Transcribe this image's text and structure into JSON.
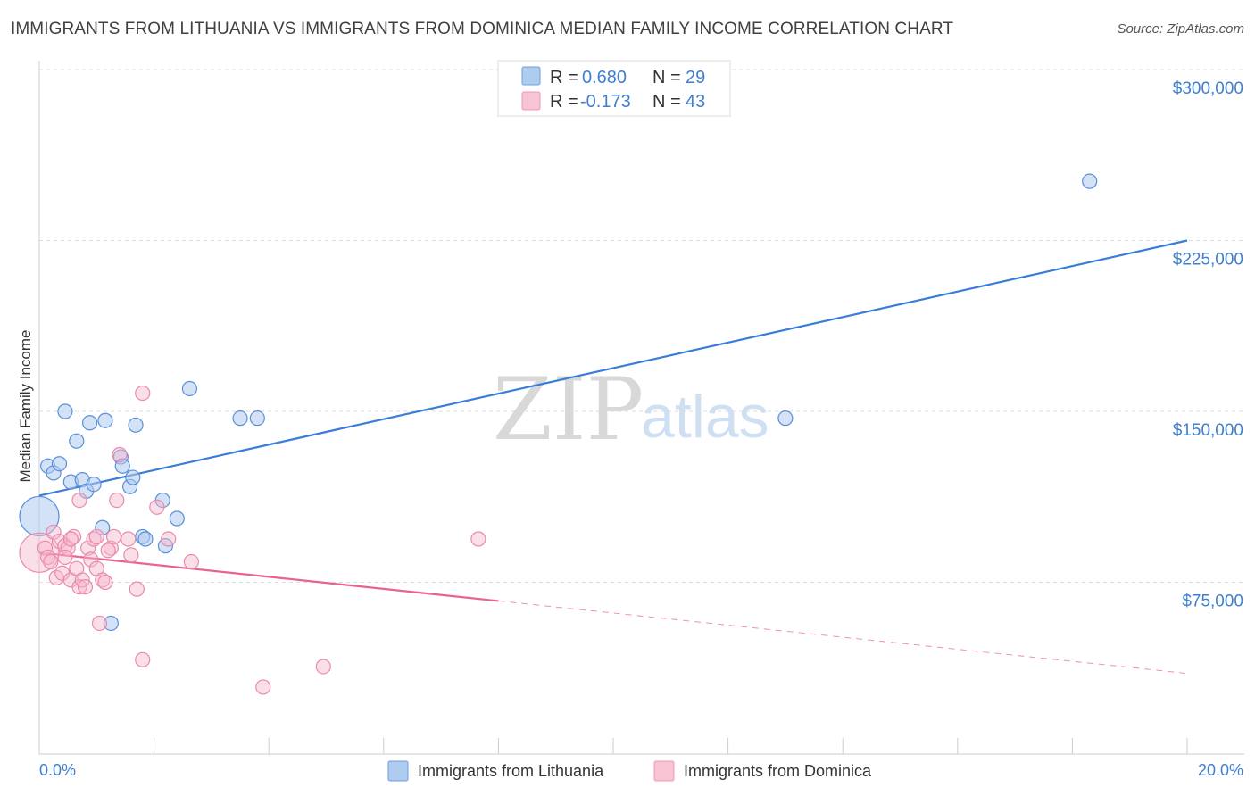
{
  "header": {
    "title": "IMMIGRANTS FROM LITHUANIA VS IMMIGRANTS FROM DOMINICA MEDIAN FAMILY INCOME CORRELATION CHART",
    "source": "Source: ZipAtlas.com"
  },
  "watermark": {
    "zip": "ZIP",
    "atlas": "atlas"
  },
  "colors": {
    "blue": "#3b7dd8",
    "blue_fill": "#aecbf0",
    "pink": "#e8638f",
    "pink_fill": "#f7b9cd",
    "grid": "#dddddd",
    "tick_text": "#3f7fd0"
  },
  "legend": {
    "rows": [
      {
        "r_label": "R = ",
        "r_value": "0.680",
        "n_label": "N = ",
        "n_value": "29"
      },
      {
        "r_label": "R = ",
        "r_value": "-0.173",
        "n_label": "N = ",
        "n_value": "43"
      }
    ]
  },
  "bottom_legend": [
    "Immigrants from Lithuania",
    "Immigrants from Dominica"
  ],
  "chart_data": {
    "type": "scatter",
    "title": "IMMIGRANTS FROM LITHUANIA VS IMMIGRANTS FROM DOMINICA MEDIAN FAMILY INCOME CORRELATION CHART",
    "xlabel": "",
    "ylabel": "Median Family Income",
    "xlim": [
      0,
      20
    ],
    "ylim": [
      0,
      300000
    ],
    "x_tick_labels": [
      "0.0%",
      "20.0%"
    ],
    "y_ticks": [
      75000,
      150000,
      225000,
      300000
    ],
    "y_tick_labels": [
      "$75,000",
      "$150,000",
      "$225,000",
      "$300,000"
    ],
    "series": [
      {
        "name": "Immigrants from Lithuania",
        "color": "#3b7dd8",
        "trend": {
          "x0": 0,
          "y0": 113000,
          "x1": 20,
          "y1": 225000,
          "dashed_from": null
        },
        "points": [
          {
            "x": 0.0,
            "y": 104000,
            "big": true
          },
          {
            "x": 0.15,
            "y": 126000
          },
          {
            "x": 0.25,
            "y": 123000
          },
          {
            "x": 0.35,
            "y": 127000
          },
          {
            "x": 0.45,
            "y": 150000
          },
          {
            "x": 0.55,
            "y": 119000
          },
          {
            "x": 0.65,
            "y": 137000
          },
          {
            "x": 0.75,
            "y": 120000
          },
          {
            "x": 0.82,
            "y": 115000
          },
          {
            "x": 0.88,
            "y": 145000
          },
          {
            "x": 0.95,
            "y": 118000
          },
          {
            "x": 1.1,
            "y": 99000
          },
          {
            "x": 1.15,
            "y": 146000
          },
          {
            "x": 1.25,
            "y": 57000
          },
          {
            "x": 1.42,
            "y": 130000
          },
          {
            "x": 1.45,
            "y": 126000
          },
          {
            "x": 1.58,
            "y": 117000
          },
          {
            "x": 1.63,
            "y": 121000
          },
          {
            "x": 1.68,
            "y": 144000
          },
          {
            "x": 1.8,
            "y": 95000
          },
          {
            "x": 1.85,
            "y": 94000
          },
          {
            "x": 2.15,
            "y": 111000
          },
          {
            "x": 2.2,
            "y": 91000
          },
          {
            "x": 2.4,
            "y": 103000
          },
          {
            "x": 2.62,
            "y": 160000
          },
          {
            "x": 3.5,
            "y": 147000
          },
          {
            "x": 3.8,
            "y": 147000
          },
          {
            "x": 13.0,
            "y": 147000
          },
          {
            "x": 18.3,
            "y": 251000
          }
        ]
      },
      {
        "name": "Immigrants from Dominica",
        "color": "#e8638f",
        "trend": {
          "x0": 0,
          "y0": 88000,
          "x1": 20,
          "y1": 35000,
          "dashed_from": 8.0
        },
        "points": [
          {
            "x": 0.0,
            "y": 88000,
            "big": true
          },
          {
            "x": 0.1,
            "y": 90000
          },
          {
            "x": 0.15,
            "y": 86000
          },
          {
            "x": 0.2,
            "y": 84000
          },
          {
            "x": 0.25,
            "y": 97000
          },
          {
            "x": 0.3,
            "y": 77000
          },
          {
            "x": 0.35,
            "y": 93000
          },
          {
            "x": 0.4,
            "y": 79000
          },
          {
            "x": 0.45,
            "y": 91000
          },
          {
            "x": 0.5,
            "y": 90000
          },
          {
            "x": 0.55,
            "y": 76000
          },
          {
            "x": 0.6,
            "y": 95000
          },
          {
            "x": 0.65,
            "y": 81000
          },
          {
            "x": 0.7,
            "y": 73000
          },
          {
            "x": 0.75,
            "y": 76000
          },
          {
            "x": 0.7,
            "y": 111000
          },
          {
            "x": 0.8,
            "y": 73000
          },
          {
            "x": 0.85,
            "y": 90000
          },
          {
            "x": 0.9,
            "y": 85000
          },
          {
            "x": 0.95,
            "y": 94000
          },
          {
            "x": 1.0,
            "y": 95000
          },
          {
            "x": 1.0,
            "y": 81000
          },
          {
            "x": 1.05,
            "y": 57000
          },
          {
            "x": 1.1,
            "y": 76000
          },
          {
            "x": 1.15,
            "y": 75000
          },
          {
            "x": 1.25,
            "y": 90000
          },
          {
            "x": 1.3,
            "y": 95000
          },
          {
            "x": 1.35,
            "y": 111000
          },
          {
            "x": 1.4,
            "y": 131000
          },
          {
            "x": 1.55,
            "y": 94000
          },
          {
            "x": 1.6,
            "y": 87000
          },
          {
            "x": 1.7,
            "y": 72000
          },
          {
            "x": 1.8,
            "y": 41000
          },
          {
            "x": 1.8,
            "y": 158000
          },
          {
            "x": 2.05,
            "y": 108000
          },
          {
            "x": 2.25,
            "y": 94000
          },
          {
            "x": 2.65,
            "y": 84000
          },
          {
            "x": 3.9,
            "y": 29000
          },
          {
            "x": 4.95,
            "y": 38000
          },
          {
            "x": 7.65,
            "y": 94000
          },
          {
            "x": 0.45,
            "y": 86000
          },
          {
            "x": 0.55,
            "y": 94000
          },
          {
            "x": 1.2,
            "y": 89000
          }
        ]
      }
    ]
  }
}
